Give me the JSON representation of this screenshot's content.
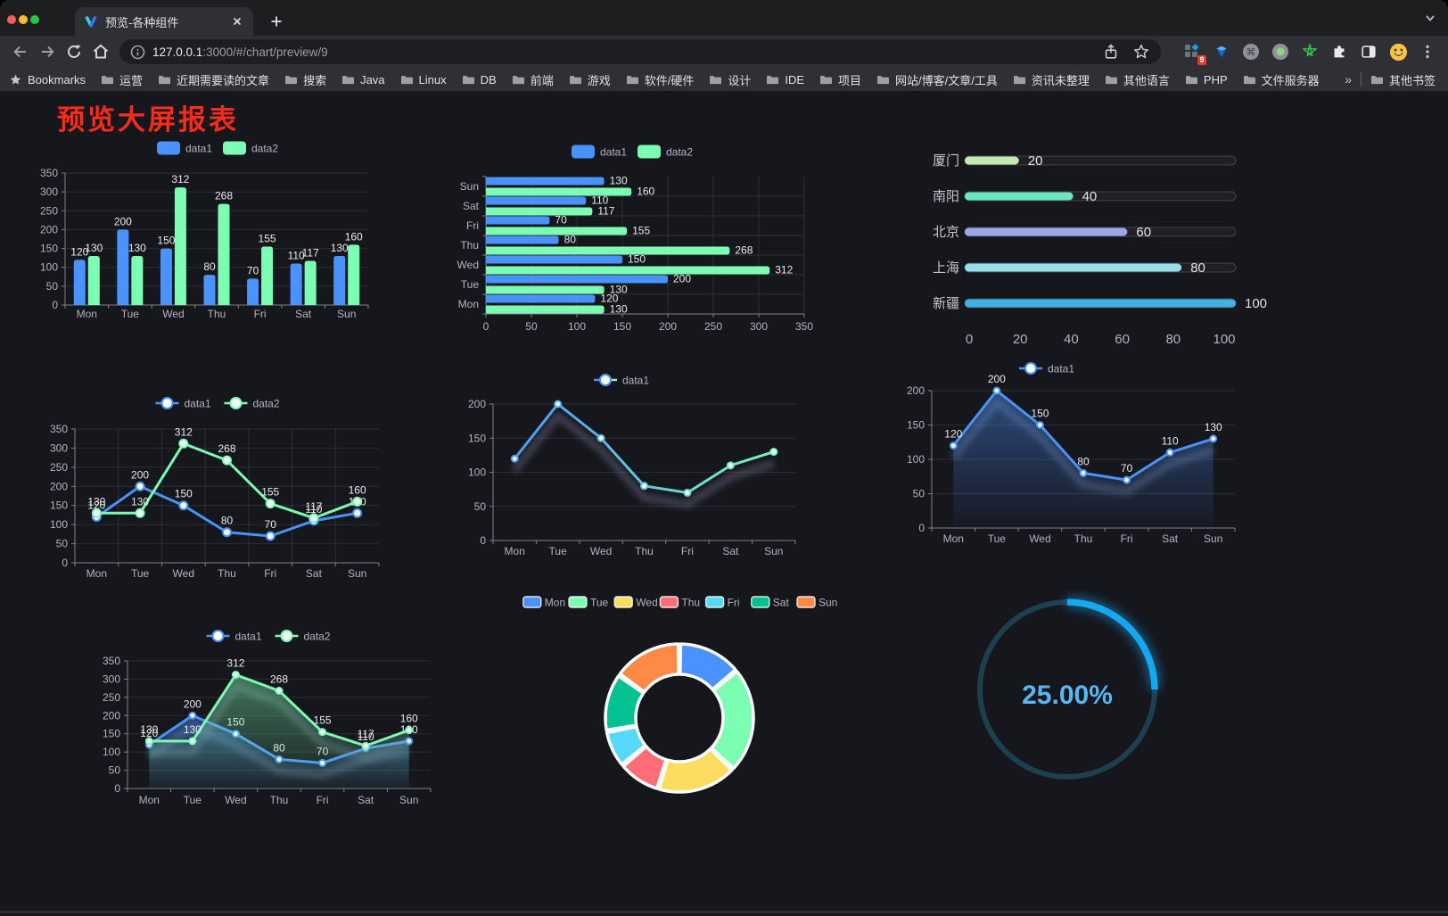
{
  "browser": {
    "tab_title": "预览-各种组件",
    "url_host": "127.0.0.1",
    "url_rest": ":3000/#/chart/preview/9",
    "bookmarks_label": "Bookmarks",
    "bookmarks": [
      "运营",
      "近期需要读的文章",
      "搜索",
      "Java",
      "Linux",
      "DB",
      "前端",
      "游戏",
      "软件/硬件",
      "设计",
      "IDE",
      "项目",
      "网站/博客/文章/工具",
      "资讯未整理",
      "其他语言",
      "PHP",
      "文件服务器"
    ],
    "bookmarks_overflow": "»",
    "other_bookmarks_label": "其他书签",
    "extension_badge": "9",
    "traffic_lights": {
      "close": "#ff5f57",
      "minimize": "#febc2e",
      "zoom": "#28c840"
    }
  },
  "page": {
    "title": "预览大屏报表",
    "title_color": "#fa2c1c",
    "background": "#16161d",
    "palette": [
      "#4992ff",
      "#7cffb2",
      "#fddd60",
      "#ff6e76",
      "#58d9f9",
      "#05c091",
      "#ff8a45"
    ]
  },
  "chart_data": [
    {
      "type": "bar",
      "categories": [
        "Mon",
        "Tue",
        "Wed",
        "Thu",
        "Fri",
        "Sat",
        "Sun"
      ],
      "series": [
        {
          "name": "data1",
          "color": "#4992ff",
          "values": [
            120,
            200,
            150,
            80,
            70,
            110,
            130
          ]
        },
        {
          "name": "data2",
          "color": "#7cffb2",
          "values": [
            130,
            130,
            312,
            268,
            155,
            117,
            160
          ]
        }
      ],
      "ylim": [
        0,
        350
      ],
      "ytick": 50,
      "labels": true,
      "legend_position": "top",
      "grid": true
    },
    {
      "type": "hbar",
      "categories_top_to_bottom": [
        "Sun",
        "Sat",
        "Fri",
        "Thu",
        "Wed",
        "Tue",
        "Mon"
      ],
      "series": [
        {
          "name": "data1",
          "color": "#4992ff",
          "values": [
            130,
            110,
            70,
            80,
            150,
            200,
            120
          ]
        },
        {
          "name": "data2",
          "color": "#7cffb2",
          "values": [
            160,
            117,
            155,
            268,
            312,
            130,
            130
          ]
        }
      ],
      "xlim": [
        0,
        350
      ],
      "xtick": 50,
      "labels": true,
      "legend_position": "top",
      "grid": true
    },
    {
      "type": "progress",
      "rows": [
        {
          "label": "厦门",
          "value": 20,
          "color": "#c4ebad"
        },
        {
          "label": "南阳",
          "value": 40,
          "color": "#6be6c1"
        },
        {
          "label": "北京",
          "value": 60,
          "color": "#a0a7e6"
        },
        {
          "label": "上海",
          "value": 80,
          "color": "#96dee8"
        },
        {
          "label": "新疆",
          "value": 100,
          "color": "#3fb1e3"
        }
      ],
      "max": 100,
      "ticks": [
        0,
        20,
        40,
        60,
        80,
        100
      ]
    },
    {
      "type": "line",
      "categories": [
        "Mon",
        "Tue",
        "Wed",
        "Thu",
        "Fri",
        "Sat",
        "Sun"
      ],
      "series": [
        {
          "name": "data1",
          "color": "#4992ff",
          "values": [
            120,
            200,
            150,
            80,
            70,
            110,
            130
          ]
        },
        {
          "name": "data2",
          "color": "#7cffb2",
          "values": [
            130,
            130,
            312,
            268,
            155,
            117,
            160
          ]
        }
      ],
      "ylim": [
        0,
        350
      ],
      "ytick": 50,
      "labels": true,
      "markerR": 4.5,
      "legend_position": "top",
      "grid": true
    },
    {
      "type": "line",
      "categories": [
        "Mon",
        "Tue",
        "Wed",
        "Thu",
        "Fri",
        "Sat",
        "Sun"
      ],
      "series": [
        {
          "name": "data1",
          "color": "#4992ff",
          "gradient": [
            "#4992ff",
            "#7cffb2"
          ],
          "values": [
            120,
            200,
            150,
            80,
            70,
            110,
            130
          ]
        }
      ],
      "ylim": [
        0,
        200
      ],
      "ytick": 50,
      "labels": false,
      "markerR": 3.5,
      "shadow": true,
      "legend_position": "top",
      "grid": true
    },
    {
      "type": "area",
      "categories": [
        "Mon",
        "Tue",
        "Wed",
        "Thu",
        "Fri",
        "Sat",
        "Sun"
      ],
      "series": [
        {
          "name": "data1",
          "color": "#4992ff",
          "values": [
            120,
            200,
            150,
            80,
            70,
            110,
            130
          ]
        }
      ],
      "ylim": [
        0,
        200
      ],
      "ytick": 50,
      "labels": true,
      "markerR": 3.5,
      "shadow": true,
      "legend_position": "top",
      "grid": true
    },
    {
      "type": "area",
      "categories": [
        "Mon",
        "Tue",
        "Wed",
        "Thu",
        "Fri",
        "Sat",
        "Sun"
      ],
      "series": [
        {
          "name": "data1",
          "color": "#4992ff",
          "values": [
            120,
            200,
            150,
            80,
            70,
            110,
            130
          ]
        },
        {
          "name": "data2",
          "color": "#7cffb2",
          "values": [
            130,
            130,
            312,
            268,
            155,
            117,
            160
          ]
        }
      ],
      "ylim": [
        0,
        350
      ],
      "ytick": 50,
      "labels": true,
      "markerR": 3.5,
      "shadow": true,
      "legend_position": "top",
      "grid": true
    },
    {
      "type": "pie",
      "items": [
        {
          "label": "Mon",
          "value": 120,
          "color": "#4992ff"
        },
        {
          "label": "Tue",
          "value": 200,
          "color": "#7cffb2"
        },
        {
          "label": "Wed",
          "value": 150,
          "color": "#fddd60"
        },
        {
          "label": "Thu",
          "value": 80,
          "color": "#ff6e76"
        },
        {
          "label": "Fri",
          "value": 70,
          "color": "#58d9f9"
        },
        {
          "label": "Sat",
          "value": 110,
          "color": "#05c091"
        },
        {
          "label": "Sun",
          "value": 130,
          "color": "#ff8a45"
        }
      ],
      "legend_position": "top",
      "border_color": "#ffffff"
    },
    {
      "type": "gauge",
      "value": 25,
      "display": "25.00%",
      "color": "#15a8ef",
      "track_color": "#1c4050",
      "text_color": "#58b6f3"
    }
  ]
}
